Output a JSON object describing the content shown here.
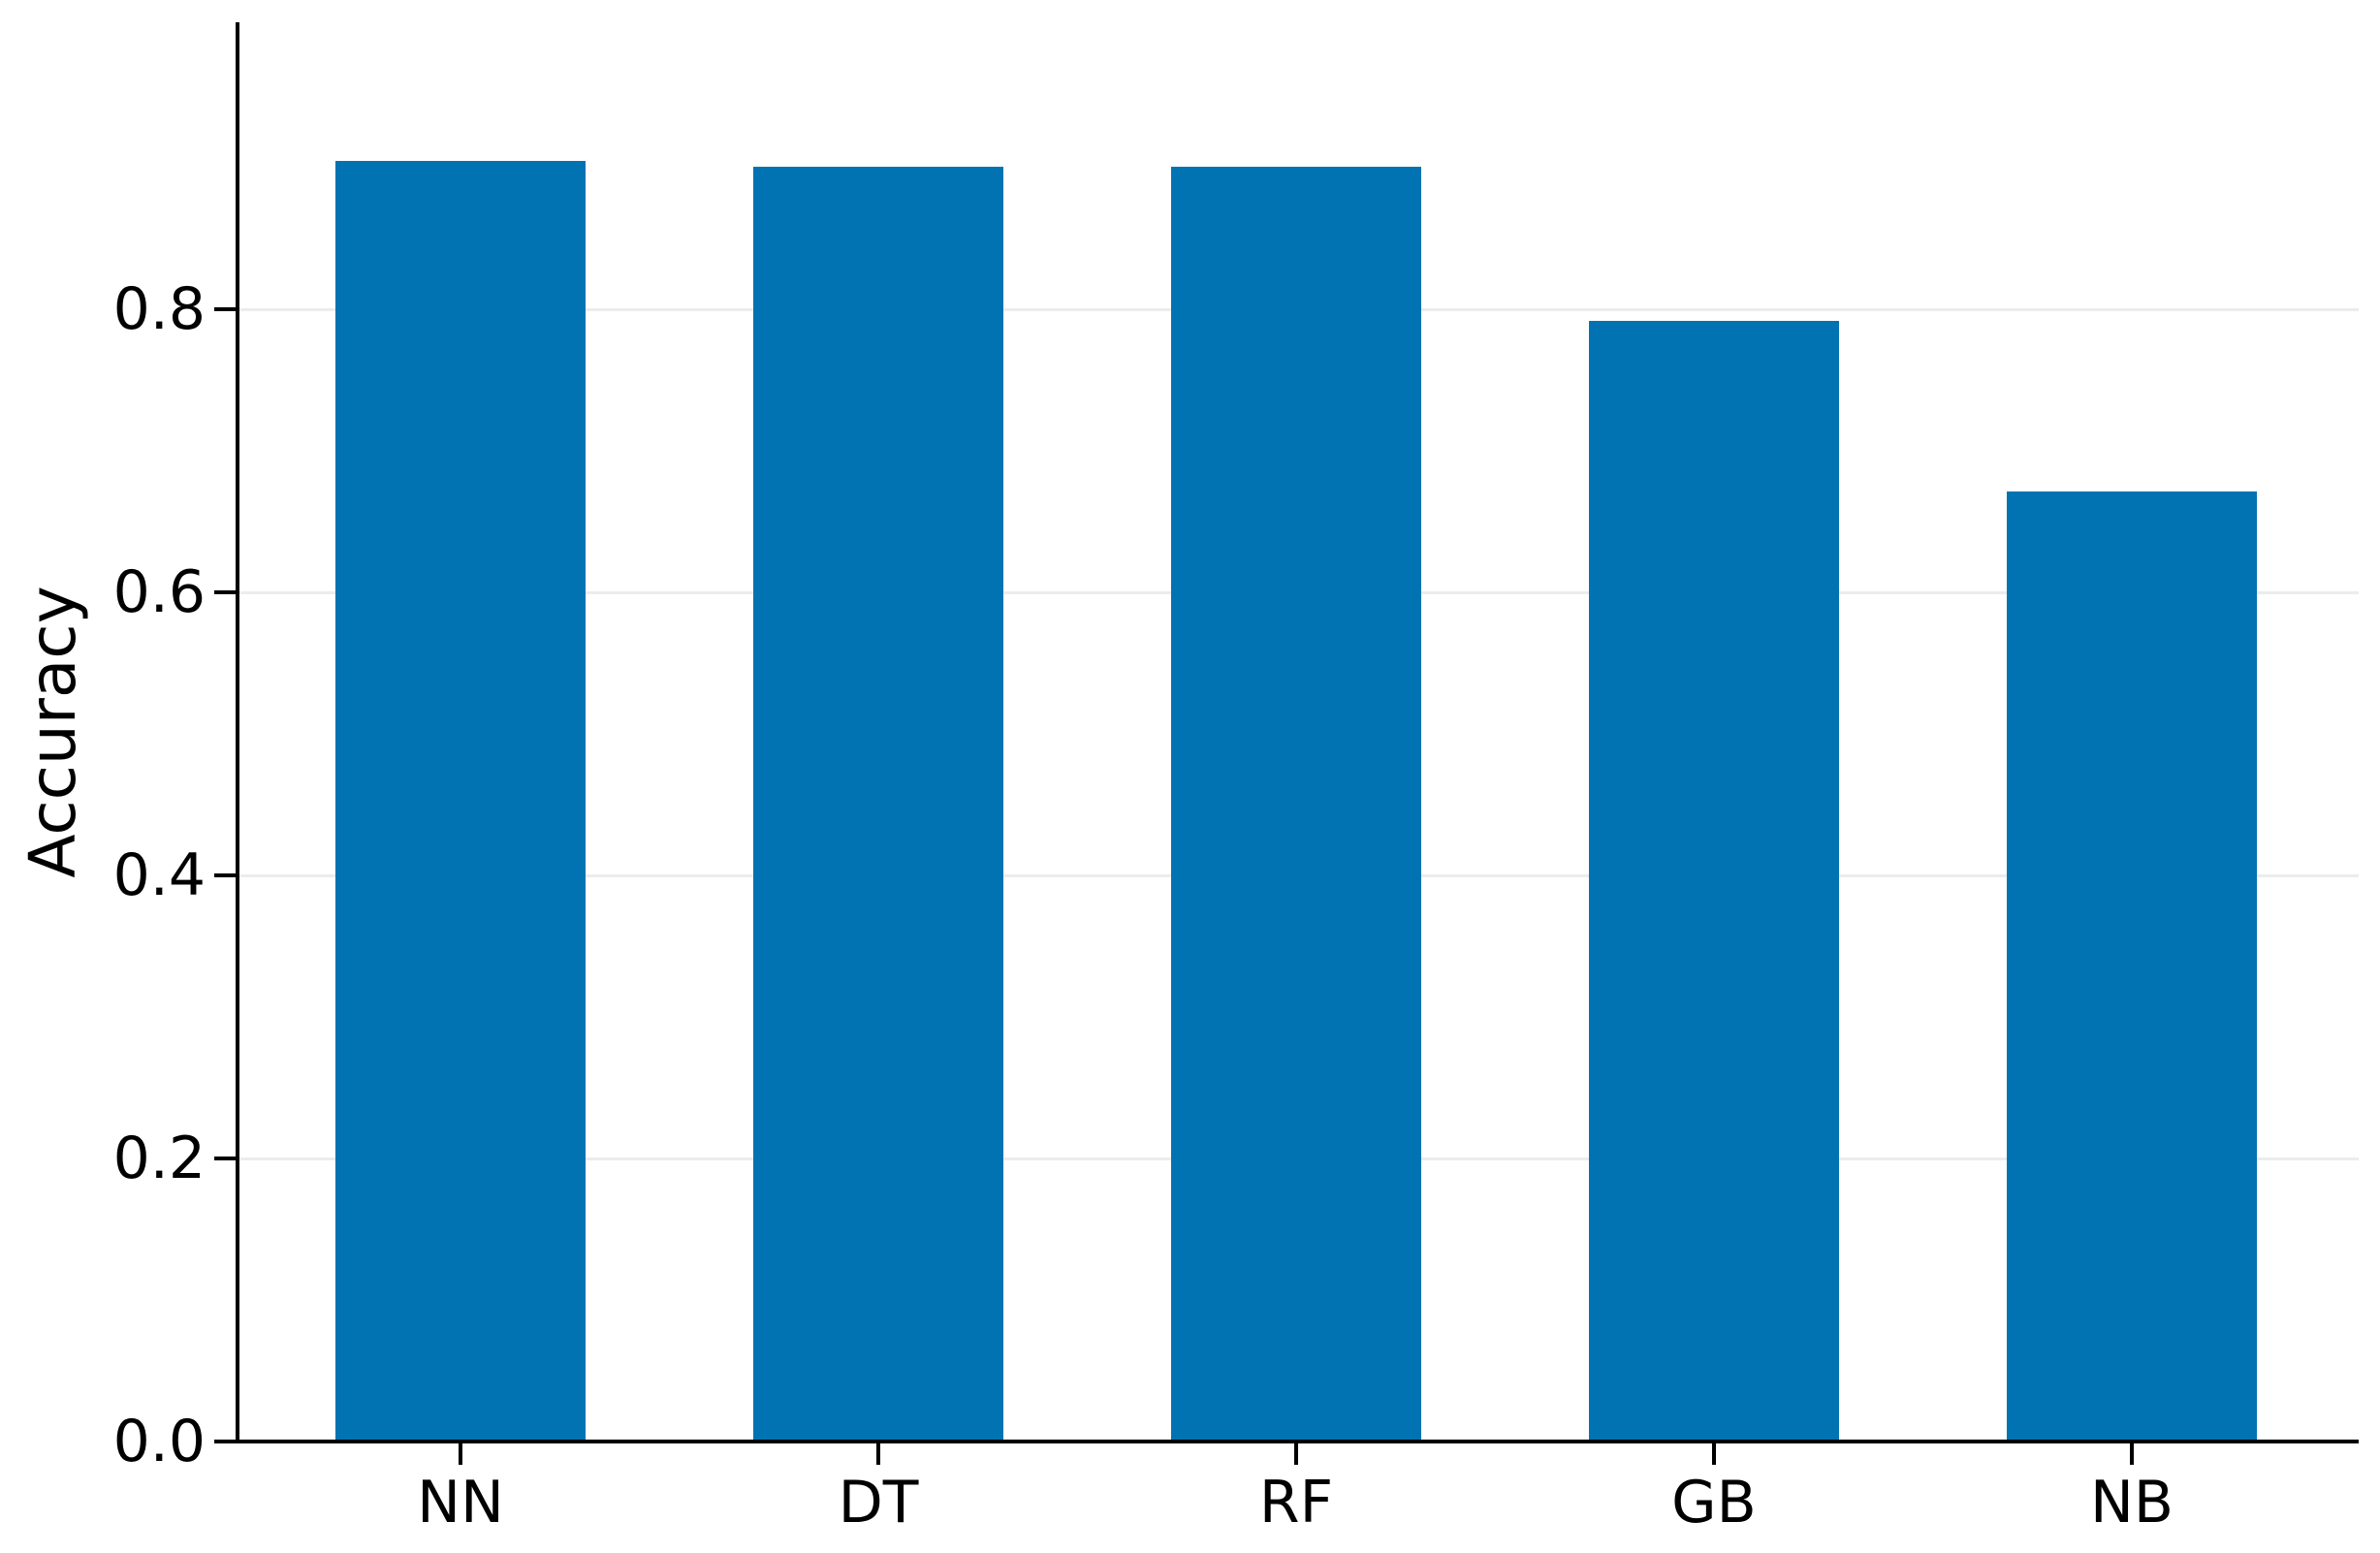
{
  "chart_data": {
    "type": "bar",
    "categories": [
      "NN",
      "DT",
      "RF",
      "GB",
      "NB"
    ],
    "values": [
      0.905,
      0.901,
      0.901,
      0.792,
      0.671
    ],
    "series_name": "Accuracy",
    "title": "",
    "xlabel": "",
    "ylabel": "Accuracy",
    "ylim": [
      0,
      1.0
    ],
    "yticks": [
      "0.0",
      "0.2",
      "0.4",
      "0.6",
      "0.8"
    ],
    "ytick_values": [
      0.0,
      0.2,
      0.4,
      0.6,
      0.8
    ],
    "bar_color": "#0173b2",
    "gridline_color": "#ececec",
    "axis_color": "#000000",
    "text_color": "#000000",
    "grid": "horizontal gridlines at y ticks, drawn behind bars",
    "legend_position": "none"
  }
}
